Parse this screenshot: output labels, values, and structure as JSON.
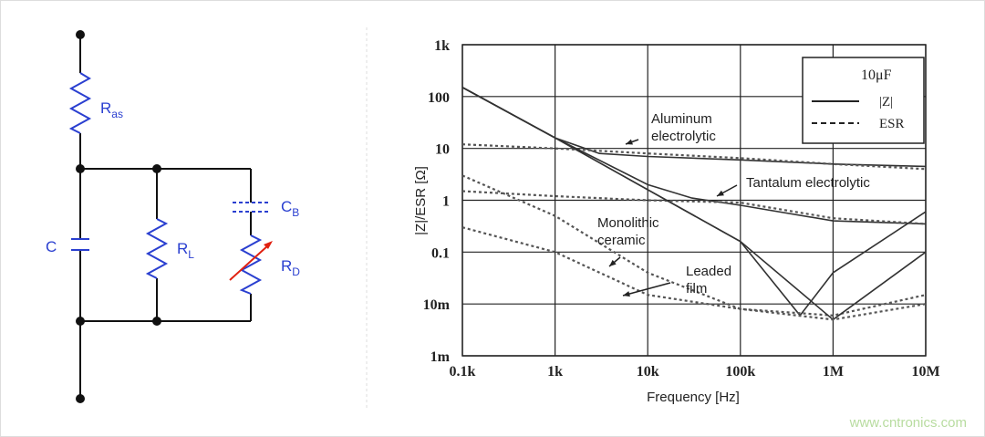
{
  "circuit": {
    "labels": [
      {
        "main": "R",
        "sub": "as"
      },
      {
        "main": "C"
      },
      {
        "main": "R",
        "sub": "L"
      },
      {
        "main": "C",
        "sub": "B"
      },
      {
        "main": "R",
        "sub": "D"
      }
    ]
  },
  "chart_data": {
    "type": "line",
    "x_label": "Frequency [Hz]",
    "y_label": "|Z|/ESR [Ω]",
    "log_x": true,
    "log_y": true,
    "grid": true,
    "xlim": [
      100,
      10000000
    ],
    "ylim": [
      0.001,
      1000
    ],
    "xticks": [
      {
        "value": 100,
        "label": "0.1k"
      },
      {
        "value": 1000,
        "label": "1k"
      },
      {
        "value": 10000,
        "label": "10k"
      },
      {
        "value": 100000,
        "label": "100k"
      },
      {
        "value": 1000000,
        "label": "1M"
      },
      {
        "value": 10000000,
        "label": "10M"
      }
    ],
    "yticks": [
      {
        "value": 0.001,
        "label": "1m"
      },
      {
        "value": 0.01,
        "label": "10m"
      },
      0.1,
      1,
      10,
      100,
      {
        "value": 1000,
        "label": "1k"
      }
    ],
    "legend": {
      "title": "10μF",
      "position": "upper right",
      "entries": [
        {
          "label": "|Z|",
          "dash": false
        },
        {
          "label": "ESR",
          "dash": true
        }
      ]
    },
    "series": [
      {
        "color": "#333333",
        "dash": false,
        "x": [
          100,
          1000,
          3000,
          10000,
          100000,
          1000000,
          10000000
        ],
        "values": [
          150,
          16,
          8,
          7,
          6,
          5,
          4.5
        ]
      },
      {
        "color": "#555555",
        "dash": true,
        "x": [
          100,
          1000,
          10000,
          100000,
          1000000,
          10000000
        ],
        "values": [
          12,
          10,
          8,
          6.5,
          5,
          4
        ]
      },
      {
        "color": "#333333",
        "dash": false,
        "x": [
          100,
          1000,
          10000,
          30000,
          100000,
          1000000,
          10000000
        ],
        "values": [
          150,
          16,
          2,
          1.1,
          0.8,
          0.4,
          0.35
        ]
      },
      {
        "color": "#555555",
        "dash": true,
        "x": [
          100,
          1000,
          10000,
          100000,
          1000000,
          10000000
        ],
        "values": [
          1.5,
          1.2,
          1,
          0.9,
          0.45,
          0.35
        ]
      },
      {
        "color": "#333333",
        "dash": false,
        "x": [
          100,
          1000,
          10000,
          100000,
          440000,
          1000000,
          10000000
        ],
        "values": [
          150,
          16,
          1.6,
          0.16,
          0.006,
          0.04,
          0.6
        ]
      },
      {
        "color": "#555555",
        "dash": true,
        "x": [
          100,
          1000,
          10000,
          100000,
          1000000,
          10000000
        ],
        "values": [
          3,
          0.5,
          0.04,
          0.008,
          0.006,
          0.015
        ]
      },
      {
        "color": "#333333",
        "dash": false,
        "x": [
          100,
          1000,
          10000,
          100000,
          1000000,
          10000000
        ],
        "values": [
          150,
          16,
          1.6,
          0.16,
          0.005,
          0.1
        ]
      },
      {
        "color": "#555555",
        "dash": true,
        "x": [
          100,
          1000,
          10000,
          100000,
          1000000,
          10000000
        ],
        "values": [
          0.3,
          0.1,
          0.015,
          0.008,
          0.005,
          0.01
        ]
      }
    ],
    "annotations": [
      {
        "text": [
          "Aluminum",
          "electrolytic"
        ]
      },
      {
        "text": [
          "Tantalum electrolytic"
        ]
      },
      {
        "text": [
          "Monolithic",
          "ceramic"
        ]
      },
      {
        "text": [
          "Leaded",
          "film"
        ]
      }
    ]
  },
  "watermark": "www.cntronics.com"
}
